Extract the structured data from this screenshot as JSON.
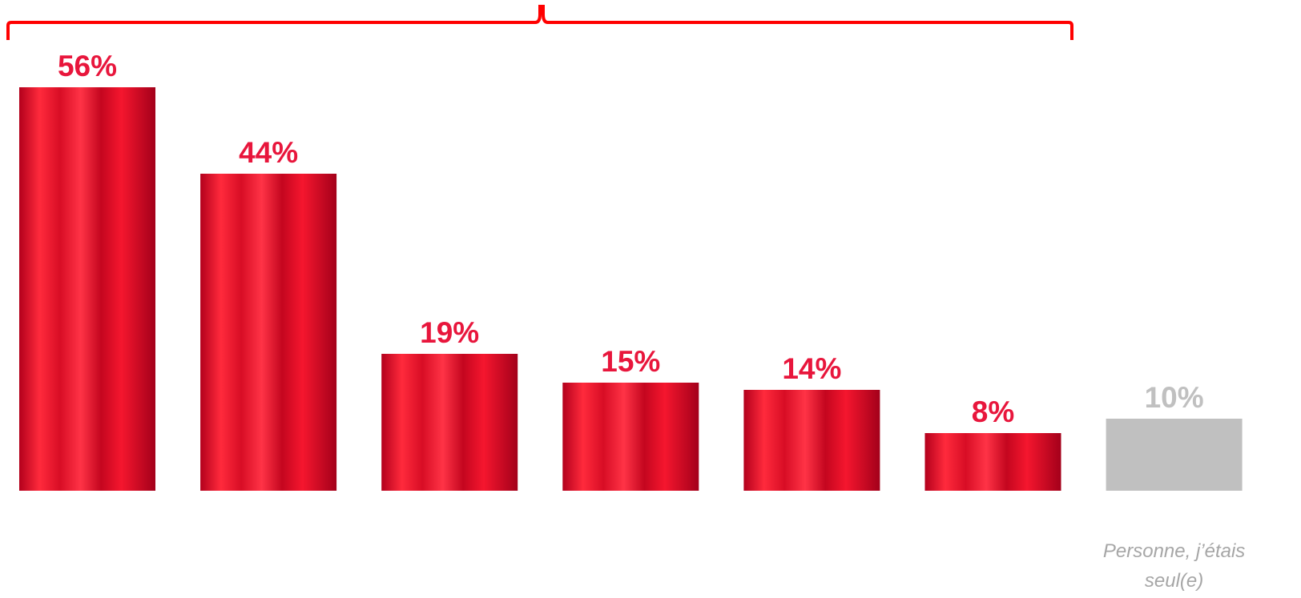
{
  "chart_data": {
    "type": "bar",
    "categories": [
      null,
      null,
      null,
      null,
      null,
      null,
      "Personne, j’étais seul(e)"
    ],
    "values": [
      56,
      44,
      19,
      15,
      14,
      8,
      10
    ],
    "value_labels": [
      "56%",
      "44%",
      "19%",
      "15%",
      "14%",
      "8%",
      "10%"
    ],
    "colors": [
      "#e8163c",
      "#e8163c",
      "#e8163c",
      "#e8163c",
      "#e8163c",
      "#e8163c",
      "#c0c0c0"
    ]
  }
}
